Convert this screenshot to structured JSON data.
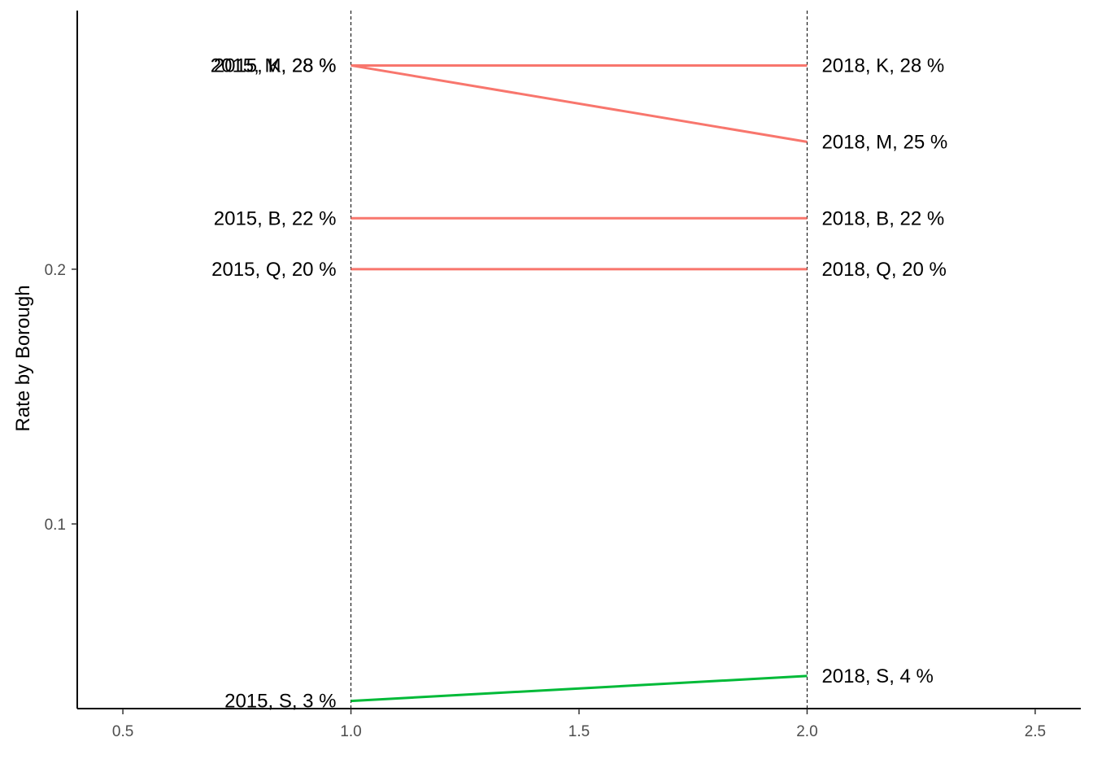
{
  "chart_data": {
    "type": "line",
    "title": "",
    "xlabel": "",
    "ylabel": "Rate by Borough",
    "xlim": [
      0.4,
      2.6
    ],
    "ylim": [
      0.0275,
      0.3025
    ],
    "x_ticks": [
      0.5,
      1.0,
      1.5,
      2.0,
      2.5
    ],
    "x_tick_labels": [
      "0.5",
      "1.0",
      "1.5",
      "2.0",
      "2.5"
    ],
    "y_ticks": [
      0.1,
      0.2
    ],
    "y_tick_labels": [
      "0.1",
      "0.2"
    ],
    "vlines": [
      1.0,
      2.0
    ],
    "grid": false,
    "legend": "none",
    "colors": {
      "decrease": "#F8766D",
      "increase": "#00BA38",
      "axis": "#000000",
      "tick_text": "#4d4d4d"
    },
    "series": [
      {
        "group": "K",
        "color_key": "decrease",
        "x": [
          1,
          2
        ],
        "y": [
          0.28,
          0.28
        ],
        "start_label": "2015, K, 28 %",
        "end_label": "2018, K, 28 %"
      },
      {
        "group": "M",
        "color_key": "decrease",
        "x": [
          1,
          2
        ],
        "y": [
          0.28,
          0.25
        ],
        "start_label": "2015, M, 28 %",
        "end_label": "2018, M, 25 %"
      },
      {
        "group": "B",
        "color_key": "decrease",
        "x": [
          1,
          2
        ],
        "y": [
          0.22,
          0.22
        ],
        "start_label": "2015, B, 22 %",
        "end_label": "2018, B, 22 %"
      },
      {
        "group": "Q",
        "color_key": "decrease",
        "x": [
          1,
          2
        ],
        "y": [
          0.2,
          0.2
        ],
        "start_label": "2015, Q, 20 %",
        "end_label": "2018, Q, 20 %"
      },
      {
        "group": "S",
        "color_key": "increase",
        "x": [
          1,
          2
        ],
        "y": [
          0.0305,
          0.0403
        ],
        "start_label": "2015, S, 3 %",
        "end_label": "2018, S, 4 %"
      }
    ]
  }
}
